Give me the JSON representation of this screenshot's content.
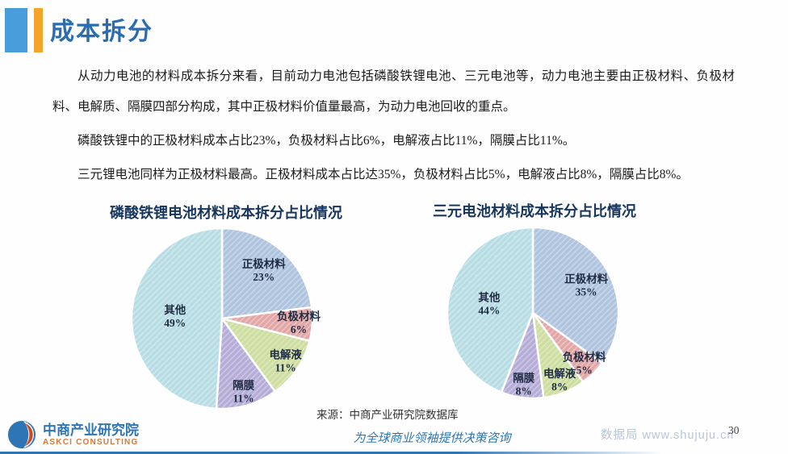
{
  "header": {
    "title": "成本拆分"
  },
  "paragraphs": [
    "从动力电池的材料成本拆分来看，目前动力电池包括磷酸铁锂电池、三元电池等，动力电池主要由正极材料、负极材料、电解质、隔膜四部分构成，其中正极材料价值量最高，为动力电池回收的重点。",
    "磷酸铁锂中的正极材料成本占比23%，负极材料占比6%，电解液占比11%，隔膜占比11%。",
    "三元锂电池同样为正极材料最高。正极材料成本占比达35%，负极材料占比5%，电解液占比8%，隔膜占比8%。"
  ],
  "chart_data": [
    {
      "type": "pie",
      "title": "磷酸铁锂电池材料成本拆分占比情况",
      "categories": [
        "正极材料",
        "负极材料",
        "电解液",
        "隔膜",
        "其他"
      ],
      "values": [
        23,
        6,
        11,
        11,
        49
      ],
      "unit": "%",
      "colors": [
        "#afc4de",
        "#e3a6a6",
        "#cedda0",
        "#b5add7",
        "#b7dde4"
      ],
      "start_angle": "12-oclock",
      "direction": "clockwise",
      "label_format": "name + percent",
      "fill_style": "diagonal-hatch"
    },
    {
      "type": "pie",
      "title": "三元电池材料成本拆分占比情况",
      "categories": [
        "正极材料",
        "负极材料",
        "电解液",
        "隔膜",
        "其他"
      ],
      "values": [
        35,
        5,
        8,
        8,
        44
      ],
      "unit": "%",
      "colors": [
        "#afc4de",
        "#e3a6a6",
        "#cedda0",
        "#b5add7",
        "#b7dde4"
      ],
      "start_angle": "12-oclock",
      "direction": "clockwise",
      "label_format": "name + percent",
      "fill_style": "diagonal-hatch"
    }
  ],
  "source_note": "来源：中商产业研究院数据库",
  "footer": {
    "logo_title": "中商产业研究院",
    "logo_subtitle": "ASKCI CONSULTING",
    "slogan": "为全球商业领袖提供决策咨询",
    "watermark": "数据局 www.shujuju.cn",
    "page_number": "30"
  },
  "colors": {
    "accent_blue": "#2e75b6",
    "header_square_blue": "#4a9ddb",
    "header_bar_orange": "#f5a42a",
    "title_blue": "#2a6cb0",
    "chart_title_navy": "#17365d",
    "pie_label_navy": "#1f2c44",
    "logo_orange": "#e0762f",
    "watermark_gray_blue": "#b9c5d9"
  }
}
